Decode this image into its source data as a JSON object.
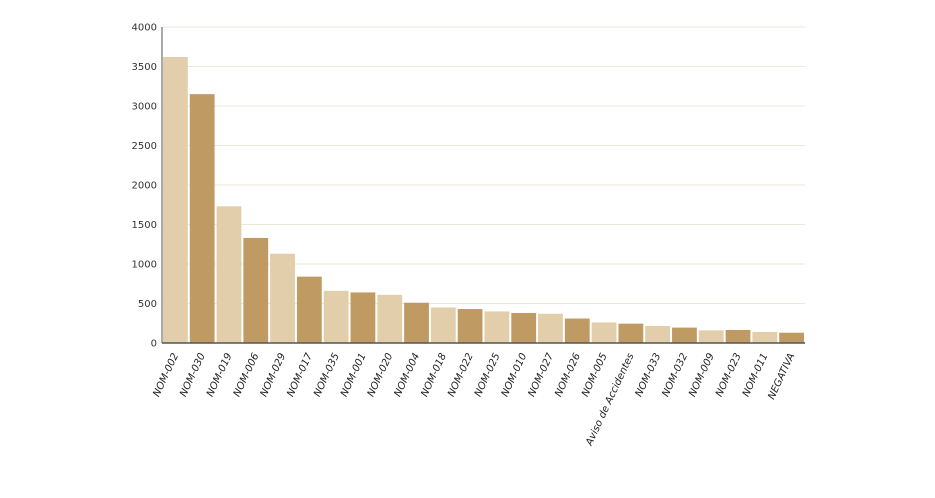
{
  "chart_data": {
    "type": "bar",
    "title": "",
    "xlabel": "",
    "ylabel": "",
    "ylim": [
      0,
      4000
    ],
    "yticks": [
      0,
      500,
      1000,
      1500,
      2000,
      2500,
      3000,
      3500,
      4000
    ],
    "grid": true,
    "legend": "none",
    "categories": [
      "NOM-002",
      "NOM-030",
      "NOM-019",
      "NOM-006",
      "NOM-029",
      "NOM-017",
      "NOM-035",
      "NOM-001",
      "NOM-020",
      "NOM-004",
      "NOM-018",
      "NOM-022",
      "NOM-025",
      "NOM-010",
      "NOM-027",
      "NOM-026",
      "NOM-005",
      "Aviso de Accidentes",
      "NOM-033",
      "NOM-032",
      "NOM-009",
      "NOM-023",
      "NOM-011",
      "NEGATIVA"
    ],
    "values": [
      3620,
      3150,
      1730,
      1330,
      1130,
      840,
      660,
      640,
      610,
      510,
      450,
      430,
      400,
      380,
      370,
      310,
      260,
      245,
      215,
      195,
      160,
      165,
      140,
      130
    ],
    "colors": {
      "light": "#e2ceaa",
      "dark": "#bf9a63",
      "grid": "#ece8d6",
      "axis": "#555555"
    }
  }
}
